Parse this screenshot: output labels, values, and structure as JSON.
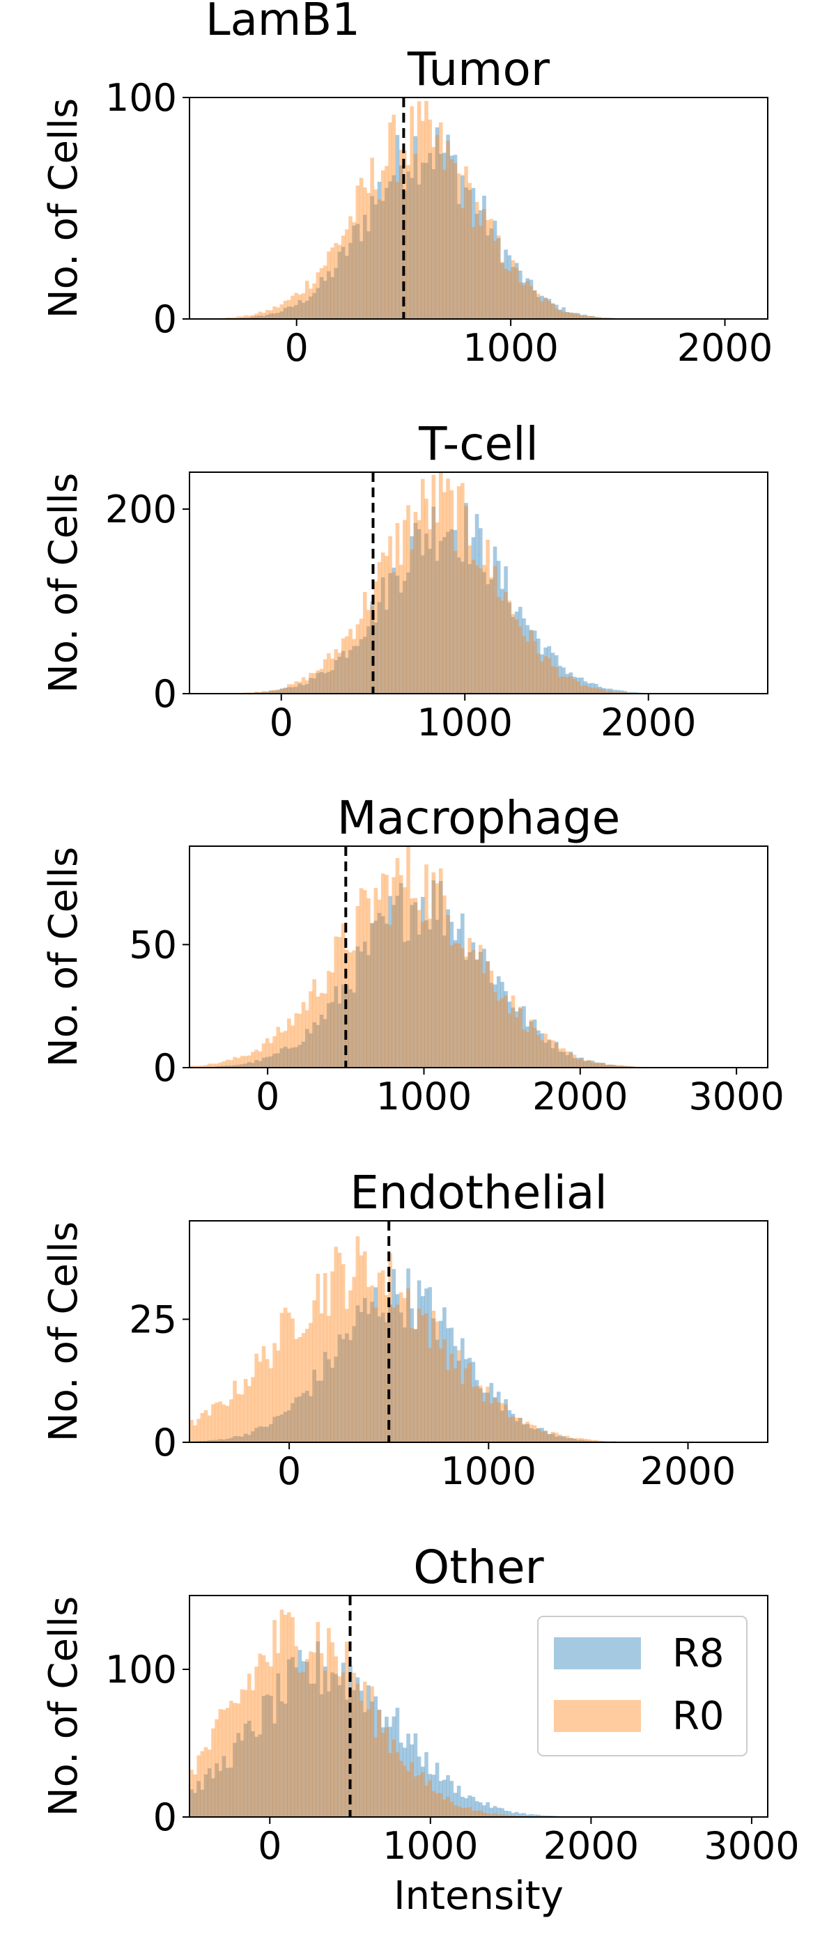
{
  "figure_title": "LamB1",
  "xlabel": "Intensity",
  "ylabel": "No. of Cells",
  "colors": {
    "R8": "#1f77b4",
    "R0": "#ff7f0e",
    "threshold": "#000000"
  },
  "legend": {
    "placement": "top-right of last panel",
    "entries": [
      "R8",
      "R0"
    ]
  },
  "chart_data": [
    {
      "type": "histogram",
      "title": "Tumor",
      "xlim": [
        -500,
        2200
      ],
      "ylim": [
        0,
        100
      ],
      "xticks": [
        0,
        1000,
        2000
      ],
      "yticks": [
        0,
        100
      ],
      "threshold": 500,
      "series": [
        {
          "name": "R8",
          "peak": 600,
          "spread": 270,
          "max": 78
        },
        {
          "name": "R0",
          "peak": 560,
          "spread": 280,
          "max": 82
        }
      ]
    },
    {
      "type": "histogram",
      "title": "T-cell",
      "xlim": [
        -500,
        2650
      ],
      "ylim": [
        0,
        240
      ],
      "xticks": [
        0,
        1000,
        2000
      ],
      "yticks": [
        0,
        200
      ],
      "threshold": 500,
      "series": [
        {
          "name": "R8",
          "peak": 900,
          "spread": 330,
          "max": 185
        },
        {
          "name": "R0",
          "peak": 850,
          "spread": 320,
          "max": 205
        }
      ]
    },
    {
      "type": "histogram",
      "title": "Macrophage",
      "xlim": [
        -500,
        3200
      ],
      "ylim": [
        0,
        90
      ],
      "xticks": [
        0,
        1000,
        2000,
        3000
      ],
      "yticks": [
        0,
        50
      ],
      "threshold": 500,
      "series": [
        {
          "name": "R8",
          "peak": 1000,
          "spread": 420,
          "max": 68
        },
        {
          "name": "R0",
          "peak": 900,
          "spread": 450,
          "max": 76
        }
      ]
    },
    {
      "type": "histogram",
      "title": "Endothelial",
      "xlim": [
        -500,
        2400
      ],
      "ylim": [
        0,
        45
      ],
      "xticks": [
        0,
        1000,
        2000
      ],
      "yticks": [
        0,
        25
      ],
      "threshold": 500,
      "series": [
        {
          "name": "R8",
          "peak": 550,
          "spread": 320,
          "max": 30
        },
        {
          "name": "R0",
          "peak": 350,
          "spread": 400,
          "max": 35
        }
      ]
    },
    {
      "type": "histogram",
      "title": "Other",
      "xlim": [
        -500,
        3100
      ],
      "ylim": [
        0,
        150
      ],
      "xticks": [
        0,
        1000,
        2000,
        3000
      ],
      "yticks": [
        0,
        100
      ],
      "threshold": 500,
      "series": [
        {
          "name": "R8",
          "peak": 350,
          "spread": 450,
          "max": 100
        },
        {
          "name": "R0",
          "peak": 200,
          "spread": 420,
          "max": 125
        }
      ]
    }
  ]
}
